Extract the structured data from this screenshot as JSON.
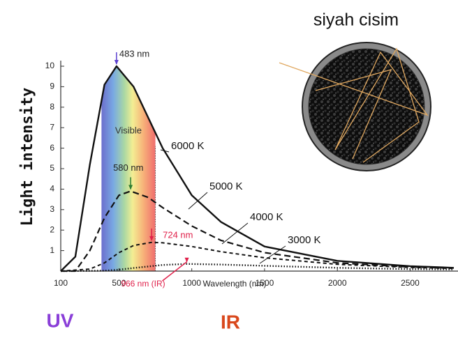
{
  "chart_data": {
    "type": "line",
    "title": "siyah cisim",
    "y_label": "Light intensity",
    "x_label": "Wavelength (nm)",
    "xlim": [
      100,
      2800
    ],
    "ylim": [
      0,
      10
    ],
    "xticks": [
      100,
      500,
      1000,
      1500,
      2000,
      2500
    ],
    "yticks": [
      1,
      2,
      3,
      4,
      5,
      6,
      7,
      8,
      9,
      10
    ],
    "grid": false,
    "visible_band": [
      380,
      750
    ],
    "visible_label": "Visible",
    "series": [
      {
        "name": "6000 K",
        "color": "#111111",
        "style": "solid",
        "x": [
          100,
          200,
          300,
          400,
          483,
          600,
          800,
          1000,
          1200,
          1500,
          2000,
          2500,
          2800
        ],
        "values": [
          0,
          0.7,
          5.2,
          9.1,
          10,
          9.0,
          6.0,
          3.7,
          2.4,
          1.2,
          0.5,
          0.24,
          0.16
        ]
      },
      {
        "name": "5000 K",
        "color": "#111111",
        "style": "dashed",
        "x": [
          100,
          200,
          300,
          400,
          500,
          580,
          700,
          800,
          1000,
          1200,
          1500,
          2000,
          2500,
          2800
        ],
        "values": [
          0,
          0,
          1.0,
          2.6,
          3.7,
          3.9,
          3.6,
          3.1,
          2.2,
          1.5,
          0.9,
          0.4,
          0.2,
          0.15
        ]
      },
      {
        "name": "4000 K",
        "color": "#111111",
        "style": "short-dashed",
        "x": [
          100,
          300,
          400,
          500,
          600,
          724,
          800,
          1000,
          1200,
          1500,
          2000,
          2500,
          2800
        ],
        "values": [
          0,
          0.1,
          0.4,
          0.9,
          1.25,
          1.4,
          1.38,
          1.2,
          0.95,
          0.65,
          0.33,
          0.18,
          0.13
        ]
      },
      {
        "name": "3000 K",
        "color": "#111111",
        "style": "dotted",
        "x": [
          100,
          400,
          500,
          600,
          800,
          966,
          1200,
          1500,
          2000,
          2500,
          2800
        ],
        "values": [
          0,
          0.02,
          0.07,
          0.15,
          0.3,
          0.35,
          0.32,
          0.26,
          0.16,
          0.1,
          0.08
        ]
      }
    ],
    "annotations": [
      {
        "text": "483 nm",
        "x": 483,
        "y": 10,
        "color": "#5b3fd0"
      },
      {
        "text": "580 nm",
        "x": 580,
        "y": 3.9,
        "color": "#2e7d32"
      },
      {
        "text": "724 nm",
        "x": 724,
        "y": 1.4,
        "color": "#e0204a"
      },
      {
        "text": "966 nm (IR)",
        "x": 966,
        "y": 0.35,
        "color": "#e0204a"
      }
    ],
    "region_labels": [
      {
        "text": "UV",
        "color": "#8a3fd8"
      },
      {
        "text": "IR",
        "color": "#d9481c"
      }
    ]
  }
}
